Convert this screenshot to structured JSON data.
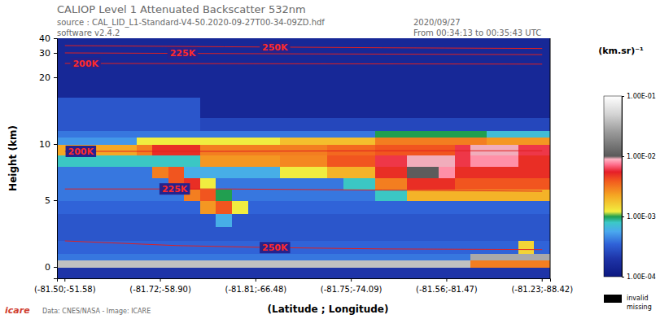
{
  "chart_data": {
    "type": "heatmap",
    "title": "CALIOP Level 1 Attenuated Backscatter 532nm",
    "subtitle": [
      "source : CAL_LID_L1-Standard-V4-50.2020-09-27T00-34-09ZD.hdf",
      "software v2.4.2"
    ],
    "annotations": [
      "2020/09/27",
      "From 00:34:13 to 00:35:43 UTC",
      "Data: CNES/NASA - Image: ICARE",
      "icare"
    ],
    "x_label": "(Latitude ; Longitude)",
    "y_label": "Height (km)",
    "categories": [
      "(-81.50;-51.58)",
      null,
      null,
      null,
      null,
      null,
      "(-81.72;-58.90)",
      null,
      null,
      null,
      null,
      null,
      "(-81.81;-66.48)",
      null,
      null,
      null,
      null,
      null,
      "(-81.75;-74.09)",
      null,
      null,
      null,
      null,
      null,
      "(-81.56;-81.47)",
      null,
      null,
      null,
      null,
      null,
      "(-81.23;-88.42)"
    ],
    "ylim": [
      -1,
      40
    ],
    "yticks": [
      0,
      5,
      10,
      20,
      30,
      40
    ],
    "y_bins": [
      -1,
      0,
      0.5,
      1,
      2,
      3,
      4,
      5,
      6,
      7,
      8,
      9,
      10,
      11,
      12,
      14,
      17,
      20,
      25,
      30,
      40
    ],
    "cells": [
      [
        0.0002,
        0.0002,
        0.0002,
        0.0002,
        0.0002,
        0.0002,
        0.0002,
        0.0002,
        0.0002,
        0.0002,
        0.0002,
        0.0002,
        0.0002,
        0.0002,
        0.0002,
        0.0002,
        0.0002,
        0.0002,
        0.0002,
        0.0002,
        0.0002,
        0.0002,
        0.0002,
        0.0002,
        0.0002,
        0.0002,
        0.0002,
        0.0002,
        0.0002,
        0.0002,
        0.0002
      ],
      [
        0.04,
        0.04,
        0.04,
        0.04,
        0.04,
        0.04,
        0.04,
        0.04,
        0.04,
        0.04,
        0.04,
        0.04,
        0.04,
        0.04,
        0.04,
        0.04,
        0.04,
        0.04,
        0.04,
        0.04,
        0.04,
        0.04,
        0.04,
        0.04,
        0.04,
        0.04,
        0.003,
        0.003,
        0.003,
        0.003,
        0.003
      ],
      [
        0.0004,
        0.0004,
        0.0004,
        0.0004,
        0.0004,
        0.0004,
        0.0004,
        0.0004,
        0.0004,
        0.0004,
        0.0004,
        0.0004,
        0.0004,
        0.0004,
        0.0004,
        0.0004,
        0.0004,
        0.0004,
        0.0004,
        0.0004,
        0.0004,
        0.0004,
        0.0004,
        0.0004,
        0.0004,
        0.0004,
        0.03,
        0.03,
        0.03,
        0.03,
        0.03
      ],
      [
        0.00035,
        0.00035,
        0.00035,
        0.00035,
        0.00035,
        0.00035,
        0.00035,
        0.00035,
        0.00035,
        0.00035,
        0.00035,
        0.00035,
        0.00035,
        0.00035,
        0.00035,
        0.00035,
        0.00035,
        0.00035,
        0.00035,
        0.00035,
        0.00035,
        0.00035,
        0.00035,
        0.00035,
        0.00035,
        0.00035,
        0.00035,
        0.00035,
        0.00035,
        0.0015,
        0.00035
      ],
      [
        0.0003,
        0.0003,
        0.0003,
        0.0003,
        0.0003,
        0.0003,
        0.0003,
        0.0003,
        0.0003,
        0.0003,
        0.0003,
        0.0003,
        0.0003,
        0.0003,
        0.0003,
        0.0003,
        0.0003,
        0.0003,
        0.0003,
        0.0003,
        0.0003,
        0.0003,
        0.0003,
        0.0003,
        0.0003,
        0.0003,
        0.0003,
        0.0003,
        0.0003,
        0.0003,
        0.0003
      ],
      [
        0.0003,
        0.0003,
        0.0003,
        0.0003,
        0.0003,
        0.0003,
        0.0003,
        0.0003,
        0.0003,
        0.0003,
        0.0006,
        0.0003,
        0.0003,
        0.0003,
        0.0003,
        0.0003,
        0.0003,
        0.0003,
        0.0003,
        0.0003,
        0.0003,
        0.0003,
        0.0003,
        0.0003,
        0.0003,
        0.0003,
        0.0003,
        0.0003,
        0.0003,
        0.0003,
        0.0003
      ],
      [
        0.00035,
        0.00035,
        0.00035,
        0.00035,
        0.00035,
        0.00035,
        0.00035,
        0.00035,
        0.00035,
        0.0025,
        0.004,
        0.0012,
        0.00035,
        0.00035,
        0.00035,
        0.00035,
        0.00035,
        0.00035,
        0.00035,
        0.00035,
        0.00035,
        0.00035,
        0.00035,
        0.00035,
        0.00035,
        0.00035,
        0.00035,
        0.00035,
        0.00035,
        0.00035,
        0.00035
      ],
      [
        0.0004,
        0.0004,
        0.0004,
        0.0004,
        0.0004,
        0.0004,
        0.0004,
        0.0004,
        0.003,
        0.004,
        0.001,
        0.0004,
        0.0004,
        0.0004,
        0.0004,
        0.0004,
        0.0004,
        0.0004,
        0.0004,
        0.0004,
        0.0008,
        0.0008,
        0.002,
        0.002,
        0.002,
        0.002,
        0.002,
        0.002,
        0.002,
        0.002,
        0.002
      ],
      [
        0.0004,
        0.0004,
        0.0004,
        0.0004,
        0.0004,
        0.0004,
        0.0004,
        0.004,
        0.005,
        0.0012,
        0.0004,
        0.0004,
        0.0004,
        0.0004,
        0.0004,
        0.0004,
        0.0004,
        0.0004,
        0.0008,
        0.0008,
        0.003,
        0.003,
        0.005,
        0.005,
        0.005,
        0.004,
        0.004,
        0.004,
        0.004,
        0.004,
        0.004
      ],
      [
        0.0004,
        0.0004,
        0.0004,
        0.0004,
        0.0004,
        0.0004,
        0.003,
        0.004,
        0.0006,
        0.0006,
        0.0006,
        0.0006,
        0.0006,
        0.0006,
        0.0012,
        0.0012,
        0.0012,
        0.002,
        0.002,
        0.002,
        0.005,
        0.005,
        0.01,
        0.01,
        0.008,
        0.005,
        0.005,
        0.005,
        0.005,
        0.005,
        0.005
      ],
      [
        0.0008,
        0.0008,
        0.0008,
        0.0008,
        0.0008,
        0.0008,
        0.0008,
        0.0008,
        0.0008,
        0.0025,
        0.0025,
        0.0025,
        0.0025,
        0.0025,
        0.0028,
        0.0028,
        0.0028,
        0.004,
        0.004,
        0.004,
        0.006,
        0.006,
        0.009,
        0.009,
        0.009,
        0.006,
        0.008,
        0.008,
        0.008,
        0.005,
        0.005
      ],
      [
        0.0022,
        0.0022,
        0.0022,
        0.0022,
        0.0022,
        0.003,
        0.005,
        0.005,
        0.005,
        0.003,
        0.003,
        0.003,
        0.003,
        0.003,
        0.003,
        0.003,
        0.003,
        0.0035,
        0.0035,
        0.0035,
        0.004,
        0.004,
        0.004,
        0.004,
        0.004,
        0.006,
        0.009,
        0.009,
        0.009,
        0.006,
        0.006
      ],
      [
        0.0005,
        0.0005,
        0.0005,
        0.0005,
        0.0005,
        0.0012,
        0.0012,
        0.0012,
        0.0012,
        0.0012,
        0.0012,
        0.0012,
        0.0012,
        0.0012,
        0.0018,
        0.0018,
        0.0018,
        0.0018,
        0.0018,
        0.0018,
        0.003,
        0.003,
        0.003,
        0.003,
        0.003,
        0.003,
        0.003,
        0.0025,
        0.0025,
        0.0025,
        0.0025
      ],
      [
        0.0004,
        0.0004,
        0.0004,
        0.0004,
        0.0004,
        0.0004,
        0.0004,
        0.0004,
        0.0004,
        0.0004,
        0.0004,
        0.0004,
        0.0004,
        0.0004,
        0.0004,
        0.0004,
        0.0004,
        0.0004,
        0.0004,
        0.0004,
        0.001,
        0.001,
        0.001,
        0.001,
        0.001,
        0.001,
        0.001,
        0.0007,
        0.0007,
        0.0007,
        0.0007
      ],
      [
        0.0003,
        0.0003,
        0.0003,
        0.0003,
        0.0003,
        0.0003,
        0.0003,
        0.0003,
        0.0003,
        0.00025,
        0.00025,
        0.00025,
        0.00025,
        0.00025,
        0.00025,
        0.00025,
        0.00025,
        0.00025,
        0.00025,
        0.00025,
        0.00025,
        0.00025,
        0.00025,
        0.00025,
        0.00025,
        0.00025,
        0.00025,
        0.00025,
        0.00025,
        0.00025,
        0.00025
      ],
      [
        0.0003,
        0.0003,
        0.0003,
        0.0003,
        0.0003,
        0.0003,
        0.0003,
        0.0003,
        0.0003,
        0.00015,
        0.00015,
        0.00015,
        0.00015,
        0.00015,
        0.00015,
        0.00015,
        0.00015,
        0.00015,
        0.00015,
        0.00015,
        0.00015,
        0.00015,
        0.00015,
        0.00015,
        0.00015,
        0.00015,
        0.00015,
        0.00015,
        0.00015,
        0.00015,
        0.00015
      ],
      [
        0.00015,
        0.00015,
        0.00015,
        0.00015,
        0.00015,
        0.00015,
        0.00015,
        0.00015,
        0.00015,
        0.00015,
        0.00015,
        0.00015,
        0.00015,
        0.00015,
        0.00015,
        0.00015,
        0.00015,
        0.00015,
        0.00015,
        0.00015,
        0.00015,
        0.00015,
        0.00015,
        0.00015,
        0.00015,
        0.00015,
        0.00015,
        0.00015,
        0.00015,
        0.00015,
        0.00015
      ],
      [
        0.00015,
        0.00015,
        0.00015,
        0.00015,
        0.00015,
        0.00015,
        0.00015,
        0.00015,
        0.00015,
        0.00015,
        0.00015,
        0.00015,
        0.00015,
        0.00015,
        0.00015,
        0.00015,
        0.00015,
        0.00015,
        0.00015,
        0.00015,
        0.00015,
        0.00015,
        0.00015,
        0.00015,
        0.00015,
        0.00015,
        0.00015,
        0.00015,
        0.00015,
        0.00015,
        0.00015
      ],
      [
        0.00015,
        0.00015,
        0.00015,
        0.00015,
        0.00015,
        0.00015,
        0.00015,
        0.00015,
        0.00015,
        0.00015,
        0.00015,
        0.00015,
        0.00015,
        0.00015,
        0.00015,
        0.00015,
        0.00015,
        0.00015,
        0.00015,
        0.00015,
        0.00015,
        0.00015,
        0.00015,
        0.00015,
        0.00015,
        0.00015,
        0.00015,
        0.00015,
        0.00015,
        0.00015,
        0.00015
      ],
      [
        0.00015,
        0.00015,
        0.00015,
        0.00015,
        0.00015,
        0.00015,
        0.00015,
        0.00015,
        0.00015,
        0.00015,
        0.00015,
        0.00015,
        0.00015,
        0.00015,
        0.00015,
        0.00015,
        0.00015,
        0.00015,
        0.00015,
        0.00015,
        0.00015,
        0.00015,
        0.00015,
        0.00015,
        0.00015,
        0.00015,
        0.00015,
        0.00015,
        0.00015,
        0.00015,
        0.00015
      ]
    ],
    "contours": [
      {
        "label": "250K",
        "x": [
          0,
          10,
          20,
          30
        ],
        "y": [
          35,
          34.2,
          33.5,
          33
        ],
        "label_x": 13.2
      },
      {
        "label": "225K",
        "x": [
          0,
          15,
          30
        ],
        "y": [
          30,
          29.6,
          29.3
        ],
        "label_x": 7.4
      },
      {
        "label": "200K",
        "x": [
          0,
          30
        ],
        "y": [
          25.7,
          25.4
        ],
        "label_x": 1.3
      },
      {
        "label": "200K",
        "x": [
          0,
          10,
          20,
          30
        ],
        "y": [
          9.35,
          9.35,
          9.4,
          9.4
        ],
        "label_x": 1.0
      },
      {
        "label": "225K",
        "x": [
          0,
          10,
          20,
          30
        ],
        "y": [
          6.0,
          6.0,
          5.9,
          5.8
        ],
        "label_x": 6.9
      },
      {
        "label": "250K",
        "x": [
          0,
          7,
          13,
          20,
          30
        ],
        "y": [
          1.95,
          1.6,
          1.45,
          1.35,
          1.3
        ],
        "label_x": 13.2
      }
    ],
    "colorbar": {
      "title": "(km.sr)⁻¹",
      "log": true,
      "range": [
        0.0001,
        0.1
      ],
      "ticks": [
        {
          "value": 0.0001,
          "label": "1.00E-04"
        },
        {
          "value": 0.001,
          "label": "1.00E-03"
        },
        {
          "value": 0.01,
          "label": "1.00E-02"
        },
        {
          "value": 0.1,
          "label": "1.00E-01"
        }
      ],
      "missing_label": [
        "invalid",
        "missing"
      ]
    }
  }
}
